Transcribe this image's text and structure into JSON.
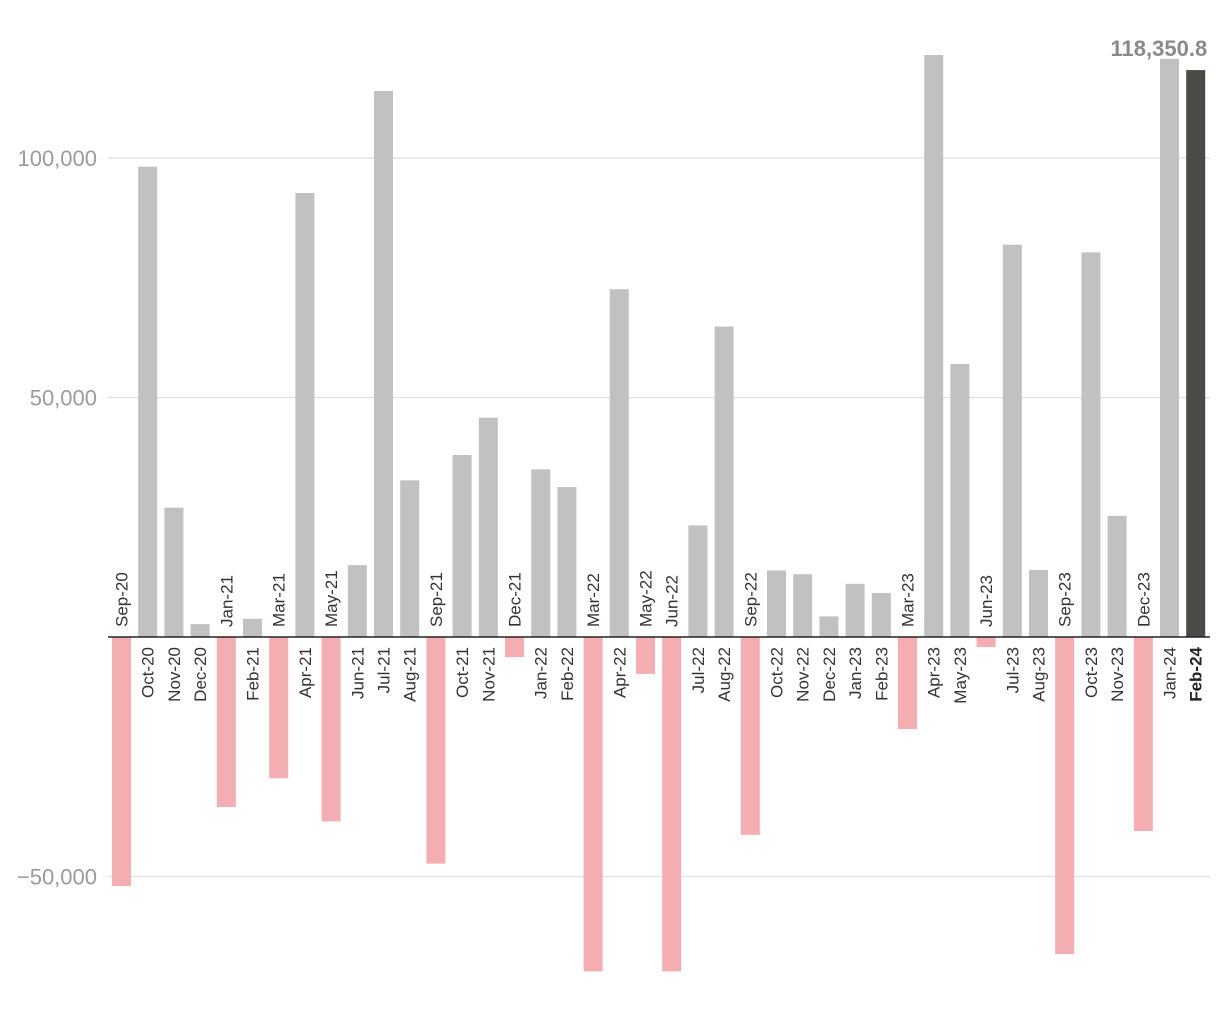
{
  "chart_data": {
    "type": "bar",
    "title": "",
    "xlabel": "",
    "ylabel": "",
    "ylim": [
      -70000,
      122000
    ],
    "y_ticks": [
      -50000,
      50000,
      100000
    ],
    "y_tick_labels": [
      "−50,000",
      "50,000",
      "100,000"
    ],
    "grid": true,
    "legend": "none",
    "colors": {
      "positive": "#c1c1c0",
      "negative": "#f4adb0",
      "highlight": "#4a4b45",
      "zero_line": "#222222",
      "grid": "#e3e3e3"
    },
    "categories": [
      "Sep-20",
      "Oct-20",
      "Nov-20",
      "Dec-20",
      "Jan-21",
      "Feb-21",
      "Mar-21",
      "Apr-21",
      "May-21",
      "Jun-21",
      "Jul-21",
      "Aug-21",
      "Sep-21",
      "Oct-21",
      "Nov-21",
      "Dec-21",
      "Jan-22",
      "Feb-22",
      "Mar-22",
      "Apr-22",
      "May-22",
      "Jun-22",
      "Jul-22",
      "Aug-22",
      "Sep-22",
      "Oct-22",
      "Nov-22",
      "Dec-22",
      "Jan-23",
      "Feb-23",
      "Mar-23",
      "Apr-23",
      "May-23",
      "Jun-23",
      "Jul-23",
      "Aug-23",
      "Sep-23",
      "Oct-23",
      "Nov-23",
      "Dec-23",
      "Jan-24",
      "Feb-24"
    ],
    "values": [
      -52000,
      98200,
      27000,
      2700,
      -35500,
      3800,
      -29500,
      92700,
      -38500,
      15000,
      114000,
      32700,
      -47300,
      38000,
      45800,
      -4200,
      35000,
      31300,
      -69800,
      72600,
      -7700,
      -69800,
      23300,
      64800,
      -41300,
      13900,
      13100,
      4300,
      11100,
      9200,
      -19200,
      121500,
      57000,
      -2100,
      81900,
      14000,
      -66200,
      80300,
      25300,
      -40500,
      120700,
      118350.8
    ],
    "highlight_index": 41,
    "value_label": "118,350.8"
  }
}
